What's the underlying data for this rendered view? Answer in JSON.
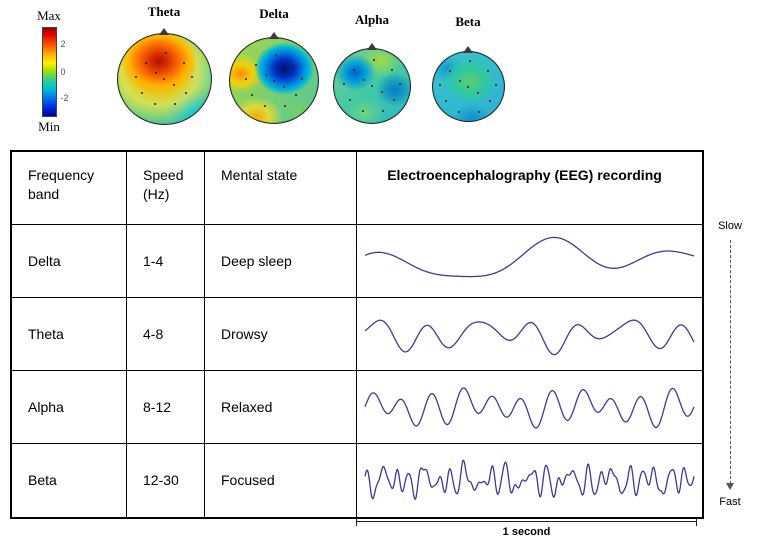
{
  "colorbar": {
    "max": "Max",
    "min": "Min",
    "ticks": [
      "2",
      "0",
      "-2"
    ],
    "gradient": [
      "#8f0000",
      "#e00000",
      "#ff5a00",
      "#ffb400",
      "#fff000",
      "#a8e000",
      "#3cd080",
      "#00c8c8",
      "#0080f0",
      "#0030e0",
      "#0000a0"
    ]
  },
  "topomaps": [
    {
      "label": "Theta"
    },
    {
      "label": "Delta"
    },
    {
      "label": "Alpha"
    },
    {
      "label": "Beta"
    }
  ],
  "table": {
    "headers": {
      "band": "Frequency band",
      "speed": "Speed (Hz)",
      "state": "Mental state",
      "eeg": "Electroencephalography (EEG) recording"
    },
    "rows": [
      {
        "band": "Delta",
        "speed": "1-4",
        "state": "Deep sleep"
      },
      {
        "band": "Theta",
        "speed": "4-8",
        "state": "Drowsy"
      },
      {
        "band": "Alpha",
        "speed": "8-12",
        "state": "Relaxed"
      },
      {
        "band": "Beta",
        "speed": "12-30",
        "state": "Focused"
      }
    ]
  },
  "annotations": {
    "slow": "Slow",
    "fast": "Fast",
    "timescale": "1 second"
  },
  "chart_data": {
    "type": "line",
    "title": "EEG frequency bands with example 1-second recordings",
    "x_span": "1 second",
    "wave_color": "#3a3a9c",
    "series": [
      {
        "name": "Delta",
        "freq_hz": "1-4",
        "mental_state": "Deep sleep",
        "components": [
          {
            "f": 2.2,
            "a": 13,
            "p": 0.05
          },
          {
            "f": 1.0,
            "a": 10,
            "p": 0.55
          },
          {
            "f": 3.5,
            "a": 5,
            "p": 0.2
          }
        ]
      },
      {
        "name": "Theta",
        "freq_hz": "4-8",
        "mental_state": "Drowsy",
        "components": [
          {
            "f": 6.5,
            "a": 11,
            "p": 0.0
          },
          {
            "f": 2.5,
            "a": 6,
            "p": 0.3
          },
          {
            "f": 9.0,
            "a": 4,
            "p": 0.6
          }
        ]
      },
      {
        "name": "Alpha",
        "freq_hz": "8-12",
        "mental_state": "Relaxed",
        "components": [
          {
            "f": 11,
            "a": 13,
            "p": 0.0
          },
          {
            "f": 3,
            "a": 5,
            "p": 0.25
          },
          {
            "f": 8,
            "a": 5,
            "p": 0.7
          }
        ]
      },
      {
        "name": "Beta",
        "freq_hz": "12-30",
        "mental_state": "Focused",
        "components": [
          {
            "f": 24,
            "a": 8,
            "p": 0.0
          },
          {
            "f": 16,
            "a": 6,
            "p": 0.35
          },
          {
            "f": 31,
            "a": 5,
            "p": 0.15
          },
          {
            "f": 9,
            "a": 4,
            "p": 0.6
          },
          {
            "f": 45,
            "a": 2.5,
            "p": 0.8
          }
        ]
      }
    ]
  }
}
